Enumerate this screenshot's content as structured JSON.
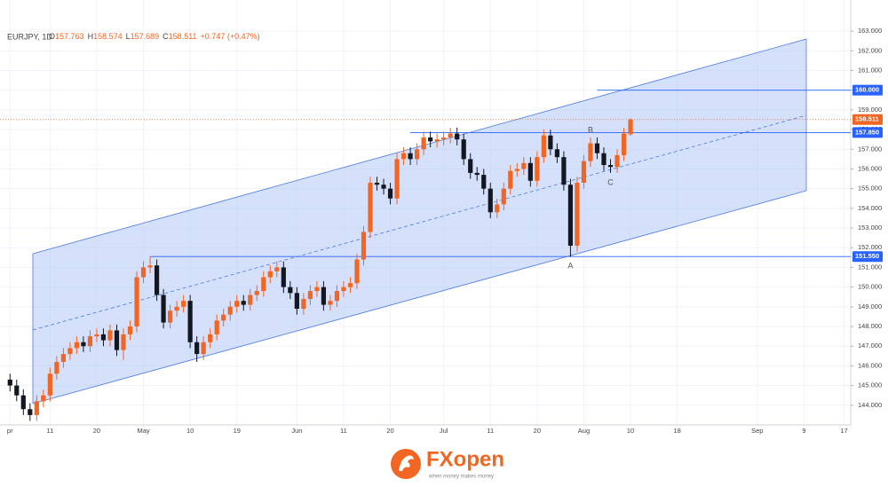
{
  "chart_data": {
    "type": "candlestick",
    "symbol": "EURJPY, 1D",
    "legend_labels": {
      "open": "O",
      "high": "H",
      "low": "L",
      "close": "C"
    },
    "change": "+0.747 (+0.47%)",
    "up_color": "#f26522",
    "down_color": "#131722",
    "xlim": [
      -1.5,
      126
    ],
    "ylim": [
      143,
      163.5
    ],
    "xticks": [
      {
        "value": 0,
        "label": "pr"
      },
      {
        "value": 6,
        "label": "11"
      },
      {
        "value": 13,
        "label": "20"
      },
      {
        "value": 20,
        "label": "May"
      },
      {
        "value": 27,
        "label": "10"
      },
      {
        "value": 34,
        "label": "19"
      },
      {
        "value": 43,
        "label": "Jun"
      },
      {
        "value": 50,
        "label": "11"
      },
      {
        "value": 57,
        "label": "20"
      },
      {
        "value": 65,
        "label": "Jul"
      },
      {
        "value": 72,
        "label": "11"
      },
      {
        "value": 79,
        "label": "20"
      },
      {
        "value": 86,
        "label": "Aug"
      },
      {
        "value": 93,
        "label": "10"
      },
      {
        "value": 100,
        "label": "18"
      },
      {
        "value": 112,
        "label": "Sep"
      },
      {
        "value": 119,
        "label": "9"
      },
      {
        "value": 125,
        "label": "17"
      }
    ],
    "yticks": [
      {
        "value": 144,
        "label": "144.000"
      },
      {
        "value": 145,
        "label": "145.000"
      },
      {
        "value": 146,
        "label": "146.000"
      },
      {
        "value": 147,
        "label": "147.000"
      },
      {
        "value": 148,
        "label": "148.000"
      },
      {
        "value": 149,
        "label": "149.000"
      },
      {
        "value": 150,
        "label": "150.000"
      },
      {
        "value": 151,
        "label": "151.000"
      },
      {
        "value": 152,
        "label": "152.000"
      },
      {
        "value": 153,
        "label": "153.000"
      },
      {
        "value": 154,
        "label": "154.000"
      },
      {
        "value": 155,
        "label": "155.000"
      },
      {
        "value": 156,
        "label": "156.000"
      },
      {
        "value": 157,
        "label": "157.000"
      },
      {
        "value": 158,
        "label": "158.000"
      },
      {
        "value": 159,
        "label": "159.000"
      },
      {
        "value": 160,
        "label": "160.000"
      },
      {
        "value": 161,
        "label": "161.000"
      },
      {
        "value": 162,
        "label": "162.000"
      },
      {
        "value": 163,
        "label": "163.000"
      }
    ],
    "levels": [
      {
        "value": 160,
        "label": "160.000",
        "from": 88
      },
      {
        "value": 157.85,
        "label": "157.850",
        "from": 60
      },
      {
        "value": 151.55,
        "label": "151.550",
        "from": 21
      }
    ],
    "point_labels": [
      {
        "text": "A",
        "at": 84
      },
      {
        "text": "B",
        "at": 87
      },
      {
        "text": "C",
        "at": 90
      }
    ],
    "open": [
      145.3,
      145.0,
      144.5,
      143.8,
      143.5,
      144.2,
      144.5,
      145.6,
      146.2,
      146.6,
      146.9,
      147.2,
      147.0,
      147.5,
      147.6,
      147.3,
      147.8,
      146.8,
      147.6,
      148.0,
      150.5,
      151.0,
      151.1,
      149.6,
      148.2,
      148.8,
      149.0,
      149.3,
      147.2,
      146.6,
      147.2,
      147.6,
      148.3,
      148.6,
      149.0,
      149.3,
      149.1,
      149.6,
      149.8,
      150.5,
      150.8,
      151.0,
      150.0,
      149.7,
      148.9,
      149.4,
      149.8,
      150.0,
      149.1,
      149.3,
      149.8,
      150.0,
      150.2,
      151.4,
      152.8,
      155.3,
      155.2,
      155.0,
      154.5,
      156.5,
      156.8,
      156.5,
      157.0,
      157.6,
      157.4,
      157.5,
      157.6,
      157.8,
      157.5,
      156.5,
      155.8,
      155.7,
      155.0,
      153.8,
      154.2,
      155.0,
      155.9,
      156.0,
      156.3,
      155.4,
      156.6,
      157.7,
      157.0,
      156.6,
      155.2,
      152.1,
      155.3,
      156.4,
      157.3,
      156.8,
      156.2,
      156.1,
      156.7,
      157.763
    ],
    "high": [
      145.6,
      145.3,
      144.8,
      144.1,
      144.5,
      144.8,
      145.9,
      146.5,
      146.9,
      147.2,
      147.5,
      147.5,
      147.8,
      147.9,
      147.9,
      148.1,
      148.1,
      147.9,
      148.3,
      150.8,
      151.3,
      151.55,
      151.4,
      149.9,
      149.1,
      149.3,
      149.6,
      149.6,
      147.5,
      147.5,
      147.9,
      148.6,
      148.9,
      149.3,
      149.6,
      149.6,
      149.9,
      150.1,
      150.8,
      151.1,
      151.3,
      151.3,
      150.3,
      150.0,
      149.7,
      150.1,
      150.3,
      150.3,
      149.6,
      150.1,
      150.3,
      150.5,
      151.7,
      153.1,
      155.6,
      155.6,
      155.5,
      155.3,
      156.8,
      157.1,
      157.1,
      157.3,
      157.9,
      157.9,
      157.8,
      157.9,
      158.1,
      158.1,
      157.8,
      156.8,
      156.1,
      156.0,
      155.3,
      154.5,
      155.3,
      156.2,
      156.3,
      156.6,
      156.6,
      156.9,
      158.0,
      158.0,
      157.3,
      156.9,
      155.5,
      155.6,
      156.7,
      157.6,
      157.6,
      157.1,
      156.5,
      157.0,
      158.1,
      158.574
    ],
    "low": [
      144.7,
      144.2,
      143.5,
      143.2,
      143.2,
      143.9,
      144.2,
      145.3,
      145.9,
      146.3,
      146.6,
      146.7,
      146.7,
      147.2,
      147.0,
      147.0,
      146.5,
      146.3,
      147.3,
      147.7,
      150.2,
      150.7,
      149.3,
      147.9,
      147.9,
      148.5,
      148.7,
      146.9,
      146.2,
      146.3,
      146.9,
      147.3,
      148.0,
      148.3,
      148.7,
      148.8,
      148.8,
      149.3,
      149.5,
      150.2,
      150.5,
      149.7,
      149.4,
      148.6,
      148.6,
      149.1,
      149.5,
      148.8,
      148.8,
      149.0,
      149.5,
      149.7,
      149.9,
      151.1,
      152.5,
      154.9,
      154.7,
      154.2,
      154.2,
      156.2,
      156.2,
      156.2,
      156.7,
      157.1,
      157.1,
      157.2,
      157.3,
      157.2,
      156.2,
      155.5,
      155.4,
      154.7,
      153.5,
      153.5,
      153.9,
      154.7,
      155.6,
      155.7,
      155.1,
      155.1,
      156.3,
      156.7,
      156.3,
      154.9,
      151.55,
      151.8,
      155.0,
      156.1,
      156.5,
      155.9,
      155.8,
      155.8,
      156.4,
      157.689
    ],
    "close": [
      145.0,
      144.5,
      143.8,
      143.5,
      144.2,
      144.5,
      145.6,
      146.2,
      146.6,
      146.9,
      147.2,
      147.0,
      147.5,
      147.6,
      147.3,
      147.8,
      146.8,
      147.6,
      148.0,
      150.5,
      151.0,
      151.1,
      149.6,
      148.2,
      148.8,
      149.0,
      149.3,
      147.2,
      146.6,
      147.2,
      147.6,
      148.3,
      148.6,
      149.0,
      149.3,
      149.1,
      149.6,
      149.8,
      150.5,
      150.8,
      151.0,
      150.0,
      149.7,
      148.9,
      149.4,
      149.8,
      150.0,
      149.1,
      149.3,
      149.8,
      150.0,
      150.2,
      151.4,
      152.8,
      155.3,
      155.2,
      155.0,
      154.5,
      156.5,
      156.8,
      156.5,
      157.0,
      157.6,
      157.4,
      157.5,
      157.6,
      157.8,
      157.5,
      156.5,
      155.8,
      155.7,
      155.0,
      153.8,
      154.2,
      155.0,
      155.9,
      156.0,
      156.3,
      155.4,
      156.6,
      157.7,
      157.0,
      156.6,
      155.2,
      152.1,
      155.3,
      156.4,
      157.3,
      156.8,
      156.2,
      156.1,
      156.7,
      157.8,
      158.511
    ]
  },
  "footer": {
    "brand": "FXopen",
    "slogan": "when money makes money"
  }
}
